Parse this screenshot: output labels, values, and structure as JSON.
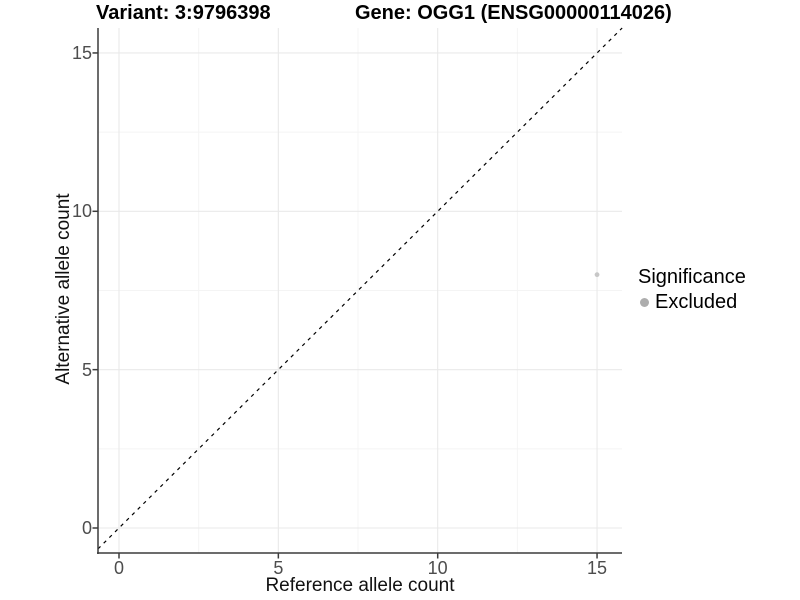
{
  "header": {
    "variant_title": "Variant: 3:9796398",
    "gene_title": "Gene: OGG1 (ENSG00000114026)"
  },
  "axes": {
    "x": {
      "title": "Reference allele count",
      "tick_labels": [
        "0",
        "5",
        "10",
        "15"
      ],
      "tick_values": [
        0,
        5,
        10,
        15
      ]
    },
    "y": {
      "title": "Alternative allele count",
      "tick_labels": [
        "0",
        "5",
        "10",
        "15"
      ],
      "tick_values": [
        0,
        5,
        10,
        15
      ]
    }
  },
  "legend": {
    "title": "Significance",
    "items": [
      {
        "label": "Excluded",
        "color": "#adadad"
      }
    ]
  },
  "colors": {
    "grid_major": "#e9e9e9",
    "grid_minor": "#f4f4f4",
    "axis_line": "#3c3c3c",
    "tick_text": "#4d4d4d",
    "point": "#c7c7c7",
    "dashed_line": "#000000"
  },
  "chart_data": {
    "type": "scatter",
    "title": "Variant: 3:9796398 | Gene: OGG1 (ENSG00000114026)",
    "xlabel": "Reference allele count",
    "ylabel": "Alternative allele count",
    "xlim": [
      0,
      15
    ],
    "ylim": [
      0,
      15
    ],
    "x_ticks": [
      0,
      5,
      10,
      15
    ],
    "y_ticks": [
      0,
      5,
      10,
      15
    ],
    "grid": true,
    "minor_grid": true,
    "legend_position": "right",
    "series": [
      {
        "name": "Excluded",
        "color": "#c7c7c7",
        "points": [
          {
            "x": 15,
            "y": 8
          }
        ]
      }
    ],
    "annotations": [
      {
        "type": "line",
        "style": "dashed",
        "from": [
          0,
          0
        ],
        "to": [
          15.8,
          15.8
        ],
        "meaning": "identity line y = x"
      }
    ]
  }
}
